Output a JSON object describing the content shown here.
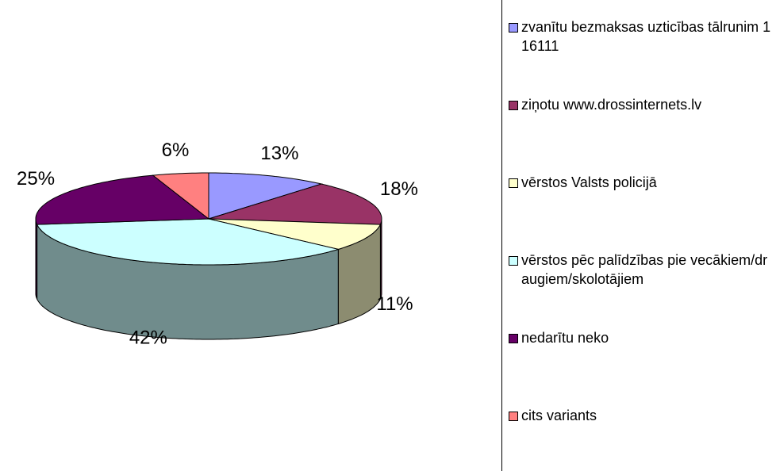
{
  "chart_data": {
    "type": "pie",
    "categories": [
      "zvanītu bezmaksas uzticības tālrunim 116111",
      "ziņotu www.drossinternets.lv",
      "vērstos Valsts policijā",
      "vērstos pēc palīdzības pie vecākiem/draugiem/skolotājiem",
      "nedarītu neko",
      "cits variants"
    ],
    "values": [
      13,
      18,
      11,
      42,
      25,
      6
    ],
    "value_labels": [
      "13%",
      "18%",
      "11%",
      "42%",
      "25%",
      "6%"
    ],
    "colors": [
      "#9999ff",
      "#993366",
      "#ffffcc",
      "#ccffff",
      "#660066",
      "#ff8080"
    ],
    "three_d": true,
    "legend": "right"
  }
}
